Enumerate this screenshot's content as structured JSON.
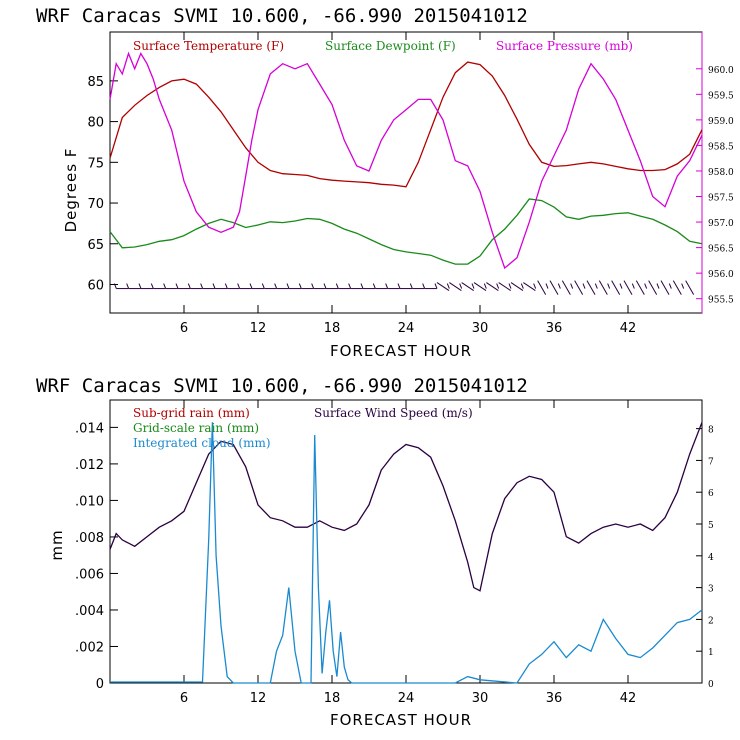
{
  "chart_data": [
    {
      "type": "line",
      "title": "WRF   Caracas SVMI  10.600, -66.990  2015041012",
      "xlabel": "FORECAST HOUR",
      "ylabel": "Degrees F",
      "xlim": [
        0,
        48
      ],
      "xticks": [
        "6",
        "12",
        "18",
        "24",
        "30",
        "36",
        "42"
      ],
      "ylim": [
        56.5,
        91
      ],
      "yticks": [
        "60",
        "65",
        "70",
        "75",
        "80",
        "85"
      ],
      "y2lim": [
        955.22,
        960.72
      ],
      "y2ticks": [
        "955.5",
        "956.0",
        "956.5",
        "957.0",
        "957.5",
        "958.0",
        "958.5",
        "959.0",
        "959.5",
        "960.0"
      ],
      "legend": [
        "Surface Temperature (F)",
        "Surface Dewpoint (F)",
        "Surface Pressure (mb)"
      ],
      "colors": {
        "temperature": "#b00000",
        "dewpoint": "#1a8a1a",
        "pressure": "#d600d6",
        "wind": "#2a0040"
      },
      "series": [
        {
          "name": "Surface Temperature (F)",
          "axis": "left",
          "x": [
            0,
            1,
            2,
            3,
            4,
            5,
            6,
            7,
            8,
            9,
            10,
            11,
            12,
            13,
            14,
            15,
            16,
            17,
            18,
            19,
            20,
            21,
            22,
            23,
            24,
            25,
            26,
            27,
            28,
            29,
            30,
            31,
            32,
            33,
            34,
            35,
            36,
            37,
            38,
            39,
            40,
            41,
            42,
            43,
            44,
            45,
            46,
            47,
            48
          ],
          "values": [
            75.5,
            80.5,
            82.0,
            83.2,
            84.2,
            85.0,
            85.2,
            84.6,
            83.0,
            81.2,
            79.0,
            76.8,
            75.0,
            74.0,
            73.6,
            73.5,
            73.4,
            73.0,
            72.8,
            72.7,
            72.6,
            72.5,
            72.3,
            72.2,
            72.0,
            75.0,
            79.0,
            83.0,
            86.0,
            87.3,
            87.0,
            85.6,
            83.2,
            80.3,
            77.2,
            75.0,
            74.5,
            74.6,
            74.8,
            75.0,
            74.8,
            74.5,
            74.2,
            74.0,
            74.0,
            74.1,
            74.8,
            76.0,
            79.0
          ]
        },
        {
          "name": "Surface Dewpoint (F)",
          "axis": "left",
          "x": [
            0,
            1,
            2,
            3,
            4,
            5,
            6,
            7,
            8,
            9,
            10,
            11,
            12,
            13,
            14,
            15,
            16,
            17,
            18,
            19,
            20,
            21,
            22,
            23,
            24,
            25,
            26,
            27,
            28,
            29,
            30,
            31,
            32,
            33,
            34,
            35,
            36,
            37,
            38,
            39,
            40,
            41,
            42,
            43,
            44,
            45,
            46,
            47,
            48
          ],
          "values": [
            66.5,
            64.5,
            64.6,
            64.9,
            65.3,
            65.5,
            66.0,
            66.8,
            67.5,
            68.0,
            67.6,
            67.0,
            67.3,
            67.7,
            67.6,
            67.8,
            68.1,
            68.0,
            67.5,
            66.8,
            66.3,
            65.6,
            64.9,
            64.3,
            64.0,
            63.8,
            63.6,
            63.0,
            62.5,
            62.5,
            63.5,
            65.5,
            66.8,
            68.5,
            70.5,
            70.3,
            69.5,
            68.3,
            68.0,
            68.4,
            68.5,
            68.7,
            68.8,
            68.4,
            68.0,
            67.3,
            66.5,
            65.3,
            65.0
          ]
        },
        {
          "name": "Surface Pressure (mb)",
          "axis": "right",
          "x": [
            0,
            0.5,
            1,
            1.5,
            2,
            2.5,
            3,
            3.5,
            4,
            5,
            6,
            7,
            8,
            9,
            10,
            10.5,
            11,
            11.5,
            12,
            13,
            14,
            15,
            16,
            17,
            18,
            19,
            20,
            21,
            22,
            23,
            24,
            25,
            26,
            27,
            28,
            29,
            30,
            31,
            32,
            33,
            34,
            35,
            36,
            37,
            38,
            39,
            40,
            41,
            42,
            43,
            44,
            45,
            46,
            47,
            48
          ],
          "values": [
            959.4,
            960.1,
            959.9,
            960.3,
            960.0,
            960.3,
            960.1,
            959.8,
            959.4,
            958.8,
            957.8,
            957.2,
            956.9,
            956.8,
            956.9,
            957.2,
            957.9,
            958.6,
            959.2,
            959.9,
            960.1,
            960.0,
            960.1,
            959.7,
            959.3,
            958.6,
            958.1,
            958.0,
            958.6,
            959.0,
            959.2,
            959.4,
            959.4,
            959.0,
            958.2,
            958.1,
            957.6,
            956.8,
            956.1,
            956.3,
            957.0,
            957.8,
            958.3,
            958.8,
            959.6,
            960.1,
            959.8,
            959.4,
            958.8,
            958.2,
            957.5,
            957.3,
            957.9,
            958.2,
            958.7
          ]
        }
      ],
      "annotation": "Wind barbs along bottom of upper panel"
    },
    {
      "type": "line",
      "title": "WRF   Caracas SVMI  10.600, -66.990  2015041012",
      "xlabel": "FORECAST HOUR",
      "ylabel": "mm",
      "xlim": [
        0,
        48
      ],
      "xticks": [
        "6",
        "12",
        "18",
        "24",
        "30",
        "36",
        "42"
      ],
      "ylim": [
        0,
        0.0155
      ],
      "yticks": [
        "0",
        ".002",
        ".004",
        ".006",
        ".008",
        ".010",
        ".012",
        ".014"
      ],
      "y2lim": [
        0,
        8.9
      ],
      "y2ticks": [
        "0",
        "1",
        "2",
        "3",
        "4",
        "5",
        "6",
        "7",
        "8"
      ],
      "legend": [
        "Sub-grid rain (mm)",
        "Grid-scale rain (mm)",
        "Integrated cloud (mm)",
        "Surface Wind Speed (m/s)"
      ],
      "colors": {
        "subgrid": "#b00000",
        "gridscale": "#1a8a1a",
        "cloud": "#1a8ad0",
        "wind": "#2a0040"
      },
      "series": [
        {
          "name": "Surface Wind Speed (m/s)",
          "axis": "right",
          "x": [
            0,
            0.5,
            1,
            2,
            3,
            4,
            5,
            6,
            7,
            8,
            9,
            10,
            11,
            12,
            13,
            14,
            15,
            16,
            17,
            18,
            19,
            20,
            21,
            22,
            23,
            24,
            25,
            26,
            27,
            28,
            29,
            29.5,
            30,
            31,
            32,
            33,
            34,
            35,
            36,
            37,
            38,
            39,
            40,
            41,
            42,
            43,
            44,
            45,
            46,
            47,
            48
          ],
          "values": [
            4.2,
            4.7,
            4.5,
            4.3,
            4.6,
            4.9,
            5.1,
            5.4,
            6.3,
            7.2,
            7.6,
            7.5,
            6.8,
            5.6,
            5.2,
            5.1,
            4.9,
            4.9,
            5.1,
            4.9,
            4.8,
            5.0,
            5.6,
            6.7,
            7.2,
            7.5,
            7.4,
            7.1,
            6.2,
            5.1,
            3.8,
            3.0,
            2.9,
            4.7,
            5.8,
            6.3,
            6.5,
            6.4,
            6.0,
            4.6,
            4.4,
            4.7,
            4.9,
            5.0,
            4.9,
            5.0,
            4.8,
            5.2,
            6.0,
            7.2,
            8.2
          ]
        },
        {
          "name": "Integrated cloud (mm)",
          "axis": "right",
          "x": [
            0,
            7.5,
            8,
            8.3,
            8.6,
            9,
            9.5,
            10,
            13,
            13.5,
            14,
            14.5,
            15,
            15.5,
            16,
            16.3,
            16.6,
            16.9,
            17.2,
            17.5,
            17.8,
            18.1,
            18.4,
            18.7,
            19,
            19.3,
            19.6,
            20,
            28,
            29,
            30,
            33,
            34,
            35,
            36,
            37,
            38,
            39,
            40,
            41,
            42,
            43,
            44,
            45,
            46,
            47,
            48
          ],
          "values": [
            0.03,
            0.03,
            4.5,
            8.2,
            4.0,
            1.8,
            0.2,
            0.0,
            0.0,
            1.0,
            1.5,
            3.0,
            1.0,
            0.0,
            0.0,
            0.0,
            7.8,
            3.0,
            0.3,
            1.6,
            2.6,
            1.0,
            0.2,
            1.6,
            0.5,
            0.1,
            0.0,
            0.0,
            0.0,
            0.2,
            0.1,
            0.0,
            0.6,
            0.9,
            1.3,
            0.8,
            1.2,
            1.0,
            2.0,
            1.4,
            0.9,
            0.8,
            1.1,
            1.5,
            1.9,
            2.0,
            2.3
          ]
        }
      ]
    }
  ]
}
